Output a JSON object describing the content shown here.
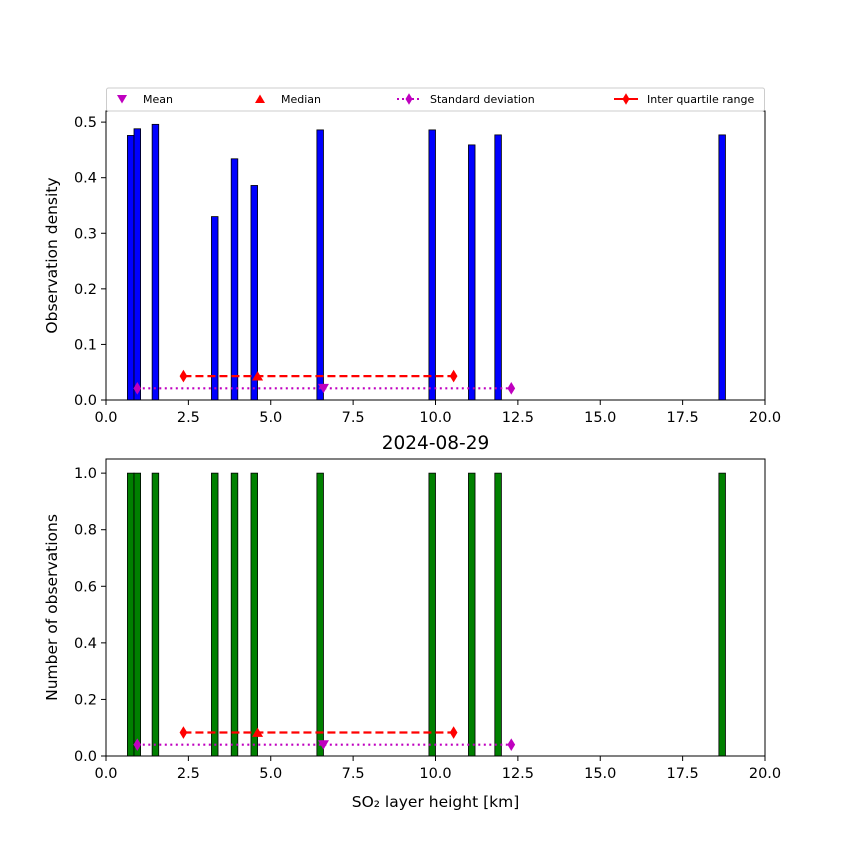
{
  "legend": {
    "items": [
      {
        "label": "Mean",
        "marker": "triangle-down",
        "color": "#bf00bf",
        "line": "none"
      },
      {
        "label": "Median",
        "marker": "triangle-up",
        "color": "#ff0000",
        "line": "none"
      },
      {
        "label": "Standard deviation",
        "marker": "diamond",
        "color": "#bf00bf",
        "line": "dotted"
      },
      {
        "label": "Inter quartile range",
        "marker": "diamond",
        "color": "#ff0000",
        "line": "solid"
      }
    ]
  },
  "chart_data": [
    {
      "type": "bar",
      "title": "",
      "xlabel": "",
      "ylabel": "Observation density",
      "xlim": [
        0,
        20
      ],
      "ylim": [
        0,
        0.52
      ],
      "xticks": [
        "0.0",
        "2.5",
        "5.0",
        "7.5",
        "10.0",
        "12.5",
        "15.0",
        "17.5",
        "20.0"
      ],
      "yticks": [
        "0.0",
        "0.1",
        "0.2",
        "0.3",
        "0.4",
        "0.5"
      ],
      "bar_color": "#0000ff",
      "bar_width": 0.2,
      "bars": [
        {
          "x": 0.75,
          "value": 0.476
        },
        {
          "x": 0.95,
          "value": 0.488
        },
        {
          "x": 1.5,
          "value": 0.496
        },
        {
          "x": 3.3,
          "value": 0.33
        },
        {
          "x": 3.9,
          "value": 0.434
        },
        {
          "x": 4.5,
          "value": 0.386
        },
        {
          "x": 6.5,
          "value": 0.486
        },
        {
          "x": 9.9,
          "value": 0.486
        },
        {
          "x": 11.1,
          "value": 0.459
        },
        {
          "x": 11.9,
          "value": 0.477
        },
        {
          "x": 18.7,
          "value": 0.477
        }
      ],
      "statistics": {
        "mean": {
          "x": 6.6,
          "y": 0.021
        },
        "median": {
          "x": 4.6,
          "y": 0.043
        },
        "standard_deviation": {
          "x": [
            0.95,
            12.3
          ],
          "y": 0.021
        },
        "inter_quartile_range": {
          "x": [
            2.35,
            10.55
          ],
          "y": 0.043
        }
      }
    },
    {
      "type": "bar",
      "title": "2024-08-29",
      "xlabel": "SO₂ layer height [km]",
      "ylabel": "Number of observations",
      "xlim": [
        0,
        20
      ],
      "ylim": [
        0,
        1.05
      ],
      "xticks": [
        "0.0",
        "2.5",
        "5.0",
        "7.5",
        "10.0",
        "12.5",
        "15.0",
        "17.5",
        "20.0"
      ],
      "yticks": [
        "0.0",
        "0.2",
        "0.4",
        "0.6",
        "0.8",
        "1.0"
      ],
      "bar_color": "#008000",
      "bar_width": 0.2,
      "bars": [
        {
          "x": 0.75,
          "value": 1
        },
        {
          "x": 0.95,
          "value": 1
        },
        {
          "x": 1.5,
          "value": 1
        },
        {
          "x": 3.3,
          "value": 1
        },
        {
          "x": 3.9,
          "value": 1
        },
        {
          "x": 4.5,
          "value": 1
        },
        {
          "x": 6.5,
          "value": 1
        },
        {
          "x": 9.9,
          "value": 1
        },
        {
          "x": 11.1,
          "value": 1
        },
        {
          "x": 11.9,
          "value": 1
        },
        {
          "x": 18.7,
          "value": 1
        }
      ],
      "statistics": {
        "mean": {
          "x": 6.6,
          "y": 0.04
        },
        "median": {
          "x": 4.6,
          "y": 0.083
        },
        "standard_deviation": {
          "x": [
            0.95,
            12.3
          ],
          "y": 0.04
        },
        "inter_quartile_range": {
          "x": [
            2.35,
            10.55
          ],
          "y": 0.083
        }
      }
    }
  ]
}
